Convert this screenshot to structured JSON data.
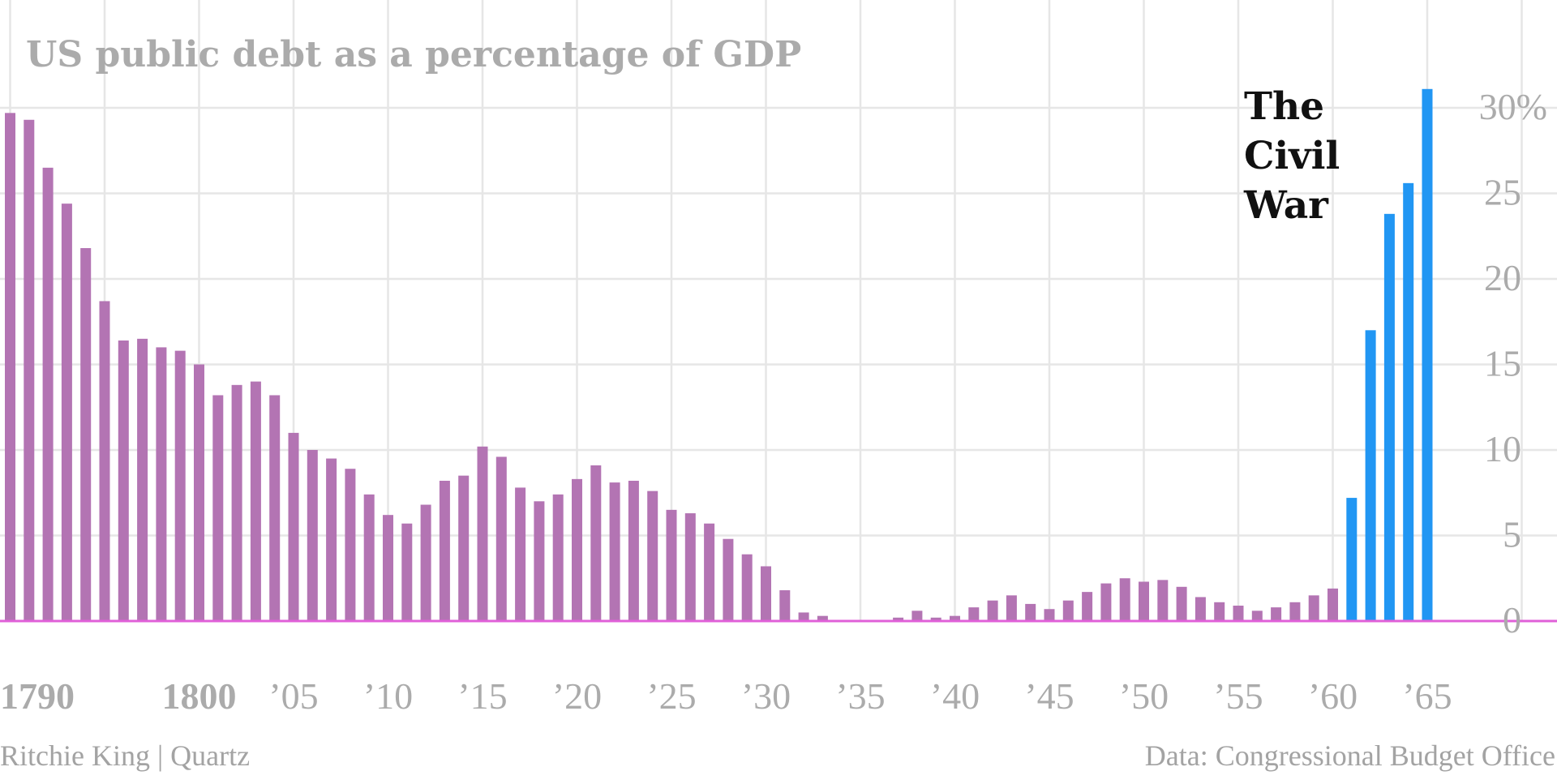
{
  "chart_data": {
    "type": "bar",
    "title": "US public debt as a percentage of GDP",
    "x": [
      1790,
      1791,
      1792,
      1793,
      1794,
      1795,
      1796,
      1797,
      1798,
      1799,
      1800,
      1801,
      1802,
      1803,
      1804,
      1805,
      1806,
      1807,
      1808,
      1809,
      1810,
      1811,
      1812,
      1813,
      1814,
      1815,
      1816,
      1817,
      1818,
      1819,
      1820,
      1821,
      1822,
      1823,
      1824,
      1825,
      1826,
      1827,
      1828,
      1829,
      1830,
      1831,
      1832,
      1833,
      1834,
      1835,
      1836,
      1837,
      1838,
      1839,
      1840,
      1841,
      1842,
      1843,
      1844,
      1845,
      1846,
      1847,
      1848,
      1849,
      1850,
      1851,
      1852,
      1853,
      1854,
      1855,
      1856,
      1857,
      1858,
      1859,
      1860,
      1861,
      1862,
      1863,
      1864,
      1865
    ],
    "values": [
      29.7,
      29.3,
      26.5,
      24.4,
      21.8,
      18.7,
      16.4,
      16.5,
      16.0,
      15.8,
      15.0,
      13.2,
      13.8,
      14.0,
      13.2,
      11.0,
      10.0,
      9.5,
      8.9,
      7.4,
      6.2,
      5.7,
      6.8,
      8.2,
      8.5,
      10.2,
      9.6,
      7.8,
      7.0,
      7.4,
      8.3,
      9.1,
      8.1,
      8.2,
      7.6,
      6.5,
      6.3,
      5.7,
      4.8,
      3.9,
      3.2,
      1.8,
      0.5,
      0.3,
      0.0,
      0.0,
      0.0,
      0.2,
      0.6,
      0.2,
      0.3,
      0.8,
      1.2,
      1.5,
      1.0,
      0.7,
      1.2,
      1.7,
      2.2,
      2.5,
      2.3,
      2.4,
      2.0,
      1.4,
      1.1,
      0.9,
      0.6,
      0.8,
      1.1,
      1.5,
      1.9,
      7.2,
      17.0,
      23.8,
      25.6,
      31.1
    ],
    "highlight_from": 1861,
    "series_colors": {
      "normal": "#b374b3",
      "civil_war": "#2196f3",
      "baseline": "#e060d8",
      "grid": "#e6e6e6"
    },
    "ylim": [
      0,
      30
    ],
    "yticks": [
      0,
      5,
      10,
      15,
      20,
      25,
      30
    ],
    "ytick_labels": [
      "0",
      "5",
      "10",
      "15",
      "20",
      "25",
      "30%"
    ],
    "xticks": [
      1790,
      1795,
      1800,
      1805,
      1810,
      1815,
      1820,
      1825,
      1830,
      1835,
      1840,
      1845,
      1850,
      1855,
      1860,
      1865,
      1870
    ],
    "xtick_labels": [
      "1790",
      "",
      "1800",
      "’05",
      "’10",
      "’15",
      "’20",
      "’25",
      "’30",
      "’35",
      "’40",
      "’45",
      "’50",
      "’55",
      "’60",
      "’65",
      ""
    ],
    "bold_xtick_labels": [
      "1790",
      "1800"
    ],
    "annotation": {
      "lines": [
        "The",
        "Civil",
        "War"
      ]
    },
    "grid": true
  },
  "footer": {
    "credit": "Ritchie King | Quartz",
    "source": "Data: Congressional Budget Office"
  }
}
